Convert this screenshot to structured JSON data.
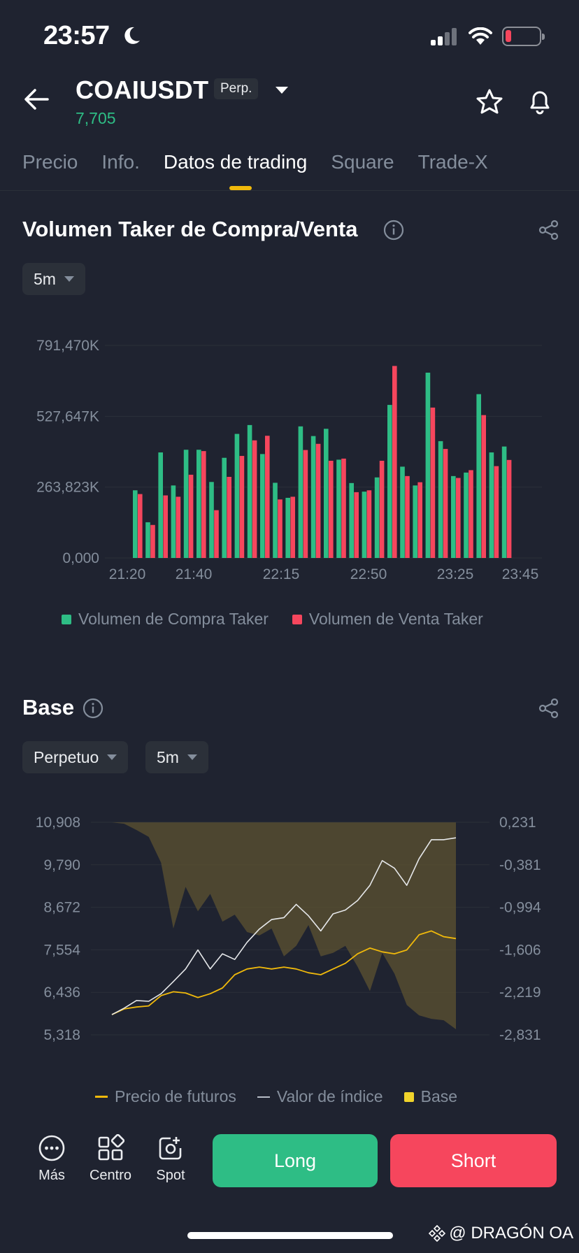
{
  "status": {
    "time": "23:57"
  },
  "header": {
    "symbol": "COAIUSDT",
    "tag": "Perp.",
    "price": "7,705"
  },
  "tabs": [
    {
      "label": "Precio"
    },
    {
      "label": "Info."
    },
    {
      "label": "Datos de trading",
      "active": true
    },
    {
      "label": "Square"
    },
    {
      "label": "Trade-X"
    }
  ],
  "taker": {
    "title": "Volumen Taker de Compra/Venta",
    "interval": "5m",
    "legend_buy": "Volumen de Compra Taker",
    "legend_sell": "Volumen de Venta Taker",
    "colors": {
      "buy": "#2ebd85",
      "sell": "#f6465d"
    }
  },
  "base": {
    "title": "Base",
    "contract_type": "Perpetuo",
    "interval": "5m",
    "legend_futures": "Precio de futuros",
    "legend_index": "Valor de índice",
    "legend_base": "Base",
    "colors": {
      "futures": "#f0b90b",
      "index": "#ffffff",
      "base": "#f0b90b"
    }
  },
  "bottom_nav": {
    "more": "Más",
    "center": "Centro",
    "spot": "Spot",
    "long": "Long",
    "short": "Short"
  },
  "watermark": "@ DRAGÓN OA",
  "chart_data": [
    {
      "type": "bar",
      "title": "Volumen Taker de Compra/Venta",
      "ylim": [
        0,
        791470
      ],
      "y_ticks": [
        "0,000",
        "263,823K",
        "527,647K",
        "791,470K"
      ],
      "x_ticks": [
        "21:20",
        "21:40",
        "22:15",
        "22:50",
        "23:25",
        "23:45"
      ],
      "series": [
        {
          "name": "Volumen de Compra Taker",
          "values": [
            252000,
            133000,
            393000,
            270000,
            403000,
            403000,
            283000,
            373000,
            462000,
            495000,
            387000,
            280000,
            224000,
            490000,
            454000,
            481000,
            366000,
            279000,
            247000,
            300000,
            570000,
            340000,
            270000,
            690000,
            435000,
            305000,
            318000,
            610000,
            393000,
            415000
          ]
        },
        {
          "name": "Volumen de Venta Taker",
          "values": [
            238000,
            123000,
            233000,
            228000,
            310000,
            398000,
            178000,
            302000,
            380000,
            438000,
            455000,
            218000,
            228000,
            402000,
            425000,
            362000,
            370000,
            245000,
            252000,
            362000,
            715000,
            305000,
            282000,
            560000,
            406000,
            298000,
            327000,
            532000,
            342000,
            365000
          ]
        }
      ]
    },
    {
      "type": "line",
      "title": "Base",
      "y_left_ticks": [
        "5,318",
        "6,436",
        "7,554",
        "8,672",
        "9,790",
        "10,908"
      ],
      "y_right_ticks": [
        "-2,831",
        "-2,219",
        "-1,606",
        "-0,994",
        "-0,381",
        "0,231"
      ],
      "ylim_left": [
        5.318,
        10.908
      ],
      "ylim_right": [
        -2.831,
        0.231
      ],
      "series": [
        {
          "name": "Valor de índice",
          "values": [
            5.85,
            6.02,
            6.22,
            6.2,
            6.4,
            6.72,
            7.05,
            7.55,
            7.05,
            7.45,
            7.3,
            7.75,
            8.1,
            8.35,
            8.4,
            8.75,
            8.45,
            8.05,
            8.5,
            8.6,
            8.85,
            9.25,
            9.9,
            9.7,
            9.25,
            9.95,
            10.45,
            10.45,
            10.5
          ]
        },
        {
          "name": "Precio de futuros",
          "values": [
            5.85,
            6.0,
            6.05,
            6.08,
            6.35,
            6.45,
            6.42,
            6.3,
            6.4,
            6.55,
            6.9,
            7.05,
            7.1,
            7.05,
            7.1,
            7.05,
            6.95,
            6.9,
            7.05,
            7.2,
            7.45,
            7.6,
            7.5,
            7.45,
            7.55,
            7.95,
            8.05,
            7.9,
            7.85
          ]
        },
        {
          "name": "Base",
          "values": [
            0.23,
            0.21,
            0.12,
            0.02,
            -0.35,
            -1.3,
            -0.7,
            -1.05,
            -0.8,
            -1.2,
            -1.1,
            -1.35,
            -1.4,
            -1.3,
            -1.7,
            -1.55,
            -1.25,
            -1.7,
            -1.65,
            -1.55,
            -1.85,
            -2.2,
            -1.65,
            -1.95,
            -2.4,
            -2.55,
            -2.6,
            -2.62,
            -2.75
          ]
        }
      ]
    }
  ]
}
